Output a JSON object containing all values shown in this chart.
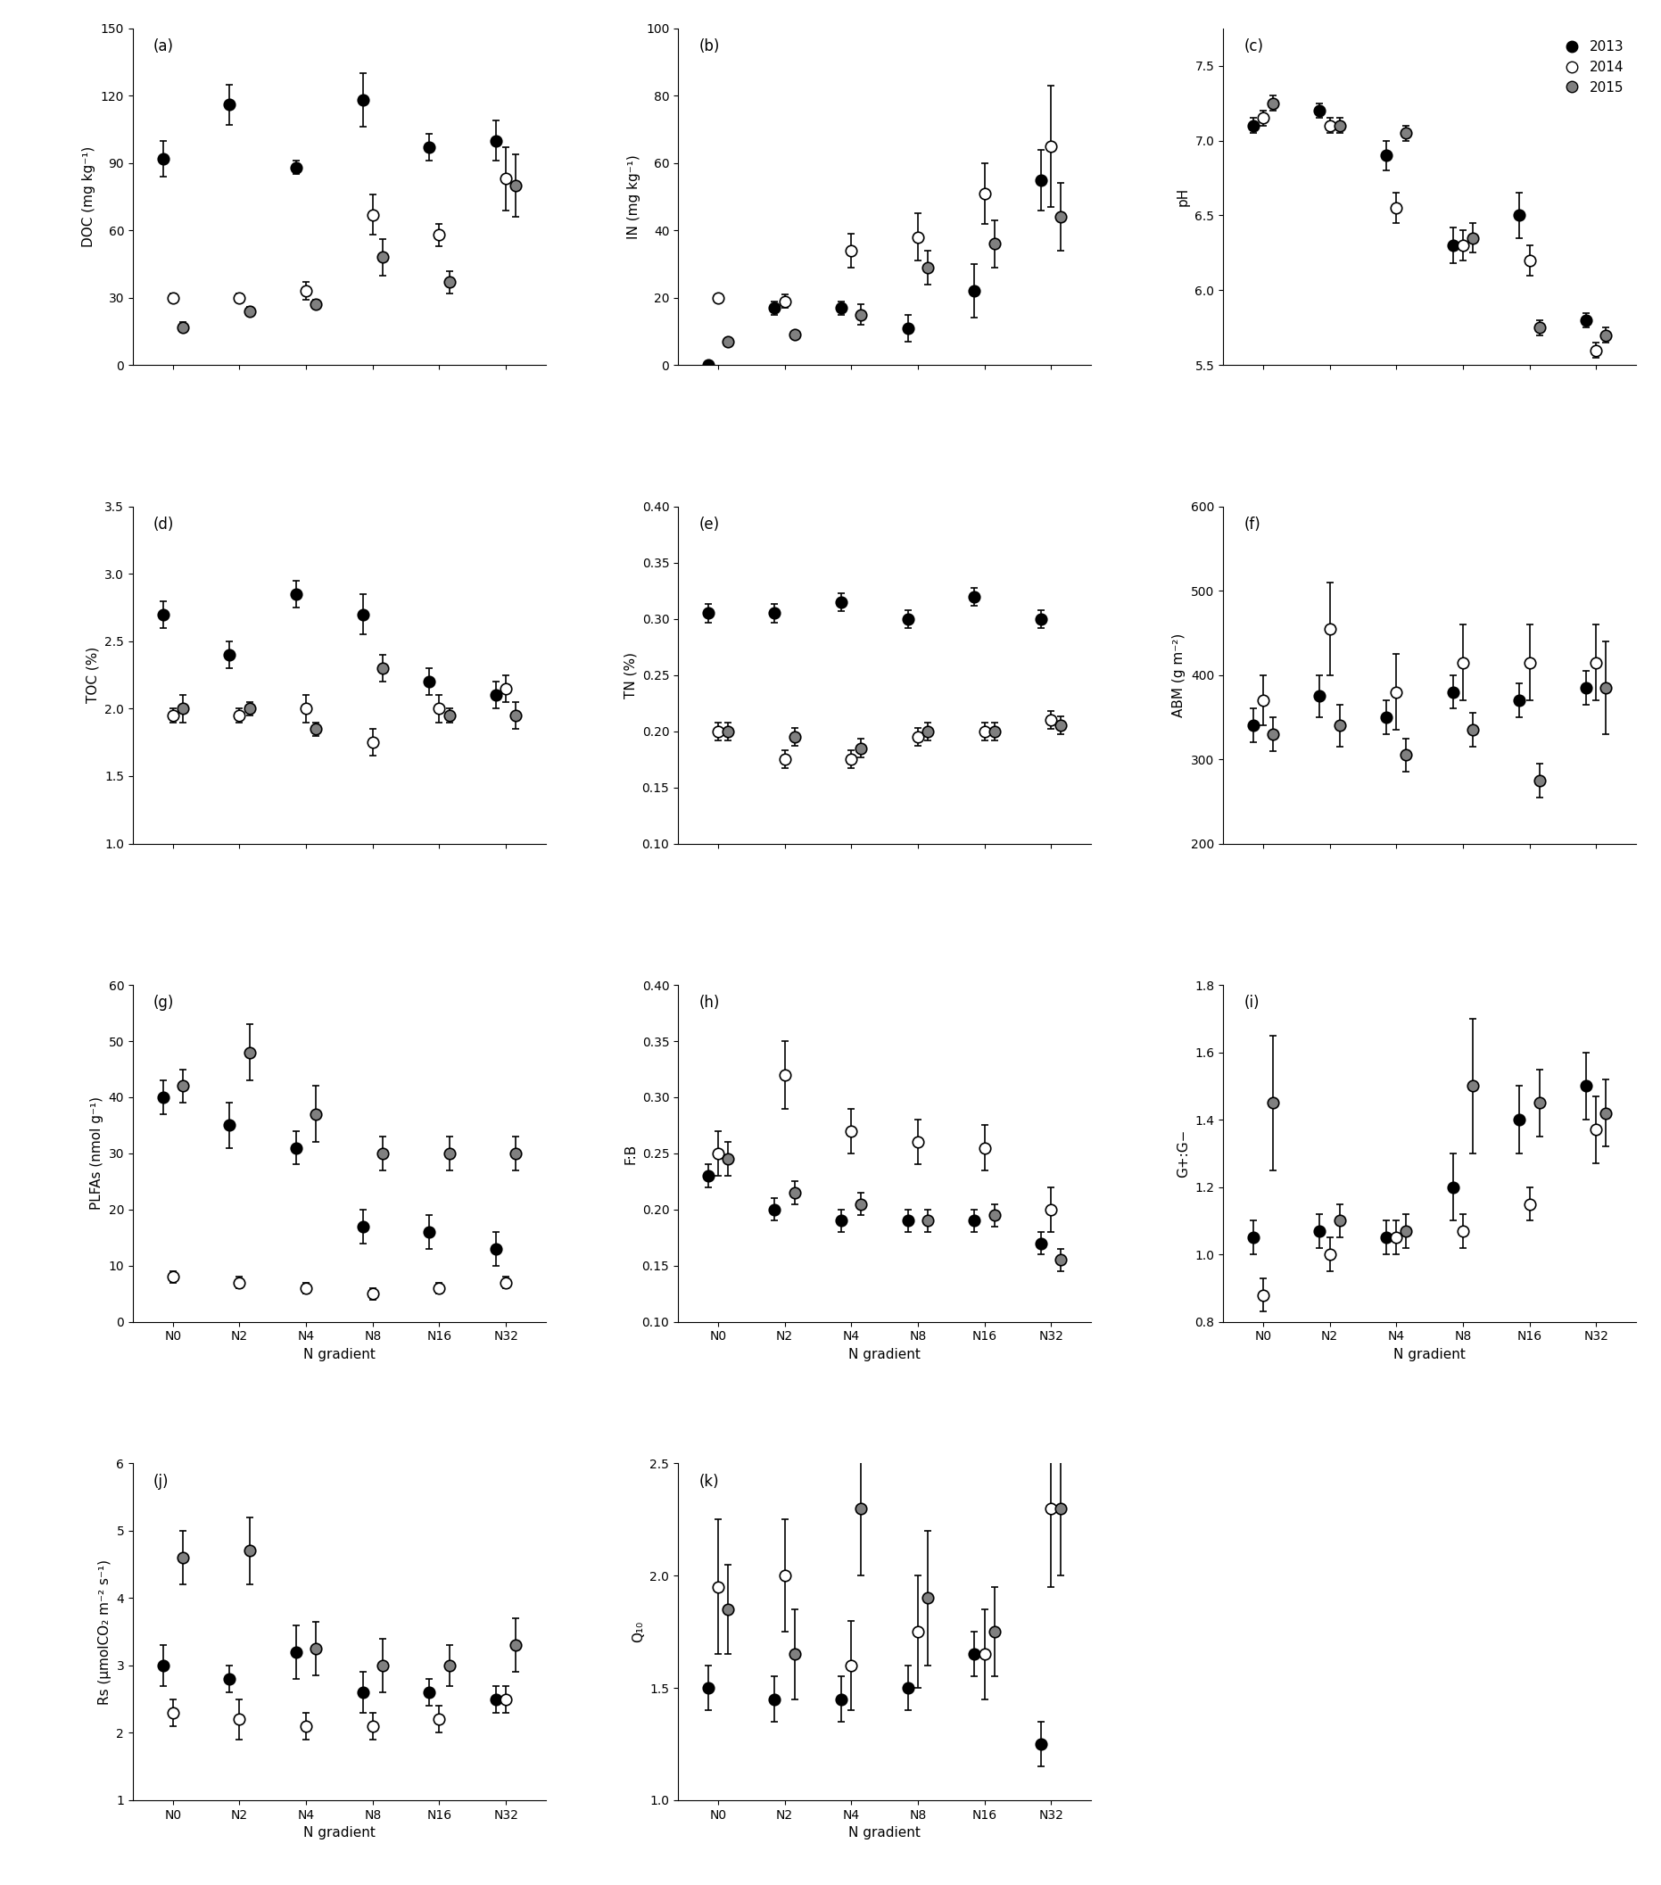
{
  "x_labels": [
    "N0",
    "N2",
    "N4",
    "N8",
    "N16",
    "N32"
  ],
  "x_positions": [
    0,
    1,
    2,
    3,
    4,
    5
  ],
  "panels": {
    "a_DOC": {
      "ylabel": "DOC (mg kg⁻¹)",
      "ylim": [
        0,
        150
      ],
      "yticks": [
        0,
        30,
        60,
        90,
        120,
        150
      ],
      "y2013": [
        92,
        116,
        88,
        118,
        97,
        100
      ],
      "y2014": [
        30,
        30,
        33,
        67,
        58,
        83
      ],
      "y2015": [
        17,
        24,
        27,
        48,
        37,
        80
      ],
      "e2013": [
        8,
        9,
        3,
        12,
        6,
        9
      ],
      "e2014": [
        2,
        2,
        4,
        9,
        5,
        14
      ],
      "e2015": [
        2,
        2,
        2,
        8,
        5,
        14
      ]
    },
    "b_IN": {
      "ylabel": "IN (mg kg⁻¹)",
      "ylim": [
        0,
        100
      ],
      "yticks": [
        0,
        20,
        40,
        60,
        80,
        100
      ],
      "y2013": [
        0,
        17,
        17,
        11,
        22,
        55
      ],
      "y2014": [
        20,
        19,
        34,
        38,
        51,
        65
      ],
      "y2015": [
        7,
        9,
        15,
        29,
        36,
        44
      ],
      "e2013": [
        0,
        2,
        2,
        4,
        8,
        9
      ],
      "e2014": [
        0,
        2,
        5,
        7,
        9,
        18
      ],
      "e2015": [
        0,
        1,
        3,
        5,
        7,
        10
      ]
    },
    "c_pH": {
      "ylabel": "pH",
      "ylim": [
        5.5,
        7.75
      ],
      "yticks": [
        5.5,
        6.0,
        6.5,
        7.0,
        7.5
      ],
      "y2013": [
        7.1,
        7.2,
        6.9,
        6.3,
        6.5,
        5.8
      ],
      "y2014": [
        7.15,
        7.1,
        6.55,
        6.3,
        6.2,
        5.6
      ],
      "y2015": [
        7.25,
        7.1,
        7.05,
        6.35,
        5.75,
        5.7
      ],
      "e2013": [
        0.05,
        0.05,
        0.1,
        0.12,
        0.15,
        0.05
      ],
      "e2014": [
        0.05,
        0.05,
        0.1,
        0.1,
        0.1,
        0.05
      ],
      "e2015": [
        0.05,
        0.05,
        0.05,
        0.1,
        0.05,
        0.05
      ]
    },
    "d_TOC": {
      "ylabel": "TOC (%)",
      "ylim": [
        1.0,
        3.5
      ],
      "yticks": [
        1.0,
        1.5,
        2.0,
        2.5,
        3.0,
        3.5
      ],
      "y2013": [
        2.7,
        2.4,
        2.85,
        2.7,
        2.2,
        2.1
      ],
      "y2014": [
        1.95,
        1.95,
        2.0,
        1.75,
        2.0,
        2.15
      ],
      "y2015": [
        2.0,
        2.0,
        1.85,
        2.3,
        1.95,
        1.95
      ],
      "e2013": [
        0.1,
        0.1,
        0.1,
        0.15,
        0.1,
        0.1
      ],
      "e2014": [
        0.05,
        0.05,
        0.1,
        0.1,
        0.1,
        0.1
      ],
      "e2015": [
        0.1,
        0.05,
        0.05,
        0.1,
        0.05,
        0.1
      ]
    },
    "e_TN": {
      "ylabel": "TN (%)",
      "ylim": [
        0.1,
        0.4
      ],
      "yticks": [
        0.1,
        0.15,
        0.2,
        0.25,
        0.3,
        0.35,
        0.4
      ],
      "y2013": [
        0.305,
        0.305,
        0.315,
        0.3,
        0.32,
        0.3
      ],
      "y2014": [
        0.2,
        0.175,
        0.175,
        0.195,
        0.2,
        0.21
      ],
      "y2015": [
        0.2,
        0.195,
        0.185,
        0.2,
        0.2,
        0.205
      ],
      "e2013": [
        0.008,
        0.008,
        0.008,
        0.008,
        0.008,
        0.008
      ],
      "e2014": [
        0.008,
        0.008,
        0.008,
        0.008,
        0.008,
        0.008
      ],
      "e2015": [
        0.008,
        0.008,
        0.008,
        0.008,
        0.008,
        0.008
      ]
    },
    "f_ABM": {
      "ylabel": "ABM (g m⁻²)",
      "ylim": [
        200,
        600
      ],
      "yticks": [
        200,
        300,
        400,
        500,
        600
      ],
      "y2013": [
        340,
        375,
        350,
        380,
        370,
        385
      ],
      "y2014": [
        370,
        455,
        380,
        415,
        415,
        415
      ],
      "y2015": [
        330,
        340,
        305,
        335,
        275,
        385
      ],
      "e2013": [
        20,
        25,
        20,
        20,
        20,
        20
      ],
      "e2014": [
        30,
        55,
        45,
        45,
        45,
        45
      ],
      "e2015": [
        20,
        25,
        20,
        20,
        20,
        55
      ]
    },
    "g_PLFAs": {
      "ylabel": "PLFAs (nmol g⁻¹)",
      "ylim": [
        0,
        60
      ],
      "yticks": [
        0,
        10,
        20,
        30,
        40,
        50,
        60
      ],
      "y2013": [
        40,
        35,
        31,
        17,
        16,
        13
      ],
      "y2014": [
        8,
        7,
        6,
        5,
        6,
        7
      ],
      "y2015": [
        42,
        48,
        37,
        30,
        30,
        30
      ],
      "e2013": [
        3,
        4,
        3,
        3,
        3,
        3
      ],
      "e2014": [
        1,
        1,
        1,
        1,
        1,
        1
      ],
      "e2015": [
        3,
        5,
        5,
        3,
        3,
        3
      ]
    },
    "h_FB": {
      "ylabel": "F:B",
      "ylim": [
        0.1,
        0.4
      ],
      "yticks": [
        0.1,
        0.15,
        0.2,
        0.25,
        0.3,
        0.35,
        0.4
      ],
      "y2013": [
        0.23,
        0.2,
        0.19,
        0.19,
        0.19,
        0.17
      ],
      "y2014": [
        0.25,
        0.32,
        0.27,
        0.26,
        0.255,
        0.2
      ],
      "y2015": [
        0.245,
        0.215,
        0.205,
        0.19,
        0.195,
        0.155
      ],
      "e2013": [
        0.01,
        0.01,
        0.01,
        0.01,
        0.01,
        0.01
      ],
      "e2014": [
        0.02,
        0.03,
        0.02,
        0.02,
        0.02,
        0.02
      ],
      "e2015": [
        0.015,
        0.01,
        0.01,
        0.01,
        0.01,
        0.01
      ]
    },
    "i_GG": {
      "ylabel": "G+:G−",
      "ylim": [
        0.8,
        1.8
      ],
      "yticks": [
        0.8,
        1.0,
        1.2,
        1.4,
        1.6,
        1.8
      ],
      "y2013": [
        1.05,
        1.07,
        1.05,
        1.2,
        1.4,
        1.5
      ],
      "y2014": [
        0.88,
        1.0,
        1.05,
        1.07,
        1.15,
        1.37
      ],
      "y2015": [
        1.45,
        1.1,
        1.07,
        1.5,
        1.45,
        1.42
      ],
      "e2013": [
        0.05,
        0.05,
        0.05,
        0.1,
        0.1,
        0.1
      ],
      "e2014": [
        0.05,
        0.05,
        0.05,
        0.05,
        0.05,
        0.1
      ],
      "e2015": [
        0.2,
        0.05,
        0.05,
        0.2,
        0.1,
        0.1
      ]
    },
    "j_Rs": {
      "ylabel": "Rs (μmolCO₂ m⁻² s⁻¹)",
      "ylim": [
        1,
        6
      ],
      "yticks": [
        1,
        2,
        3,
        4,
        5,
        6
      ],
      "y2013": [
        3.0,
        2.8,
        3.2,
        2.6,
        2.6,
        2.5
      ],
      "y2014": [
        2.3,
        2.2,
        2.1,
        2.1,
        2.2,
        2.5
      ],
      "y2015": [
        4.6,
        4.7,
        3.25,
        3.0,
        3.0,
        3.3
      ],
      "e2013": [
        0.3,
        0.2,
        0.4,
        0.3,
        0.2,
        0.2
      ],
      "e2014": [
        0.2,
        0.3,
        0.2,
        0.2,
        0.2,
        0.2
      ],
      "e2015": [
        0.4,
        0.5,
        0.4,
        0.4,
        0.3,
        0.4
      ]
    },
    "k_Q10": {
      "ylabel": "Q₁₀",
      "ylim": [
        1.0,
        2.5
      ],
      "yticks": [
        1.0,
        1.5,
        2.0,
        2.5
      ],
      "y2013": [
        1.5,
        1.45,
        1.45,
        1.5,
        1.65,
        1.25
      ],
      "y2014": [
        1.95,
        2.0,
        1.6,
        1.75,
        1.65,
        2.3
      ],
      "y2015": [
        1.85,
        1.65,
        2.3,
        1.9,
        1.75,
        2.3
      ],
      "e2013": [
        0.1,
        0.1,
        0.1,
        0.1,
        0.1,
        0.1
      ],
      "e2014": [
        0.3,
        0.25,
        0.2,
        0.25,
        0.2,
        0.35
      ],
      "e2015": [
        0.2,
        0.2,
        0.3,
        0.3,
        0.2,
        0.3
      ]
    }
  },
  "colors": {
    "2013": "#000000",
    "2014": "#ffffff",
    "2015": "#808080"
  },
  "marker_size": 9,
  "marker_edgewidth": 1.2,
  "capsize": 3,
  "elinewidth": 1.2
}
